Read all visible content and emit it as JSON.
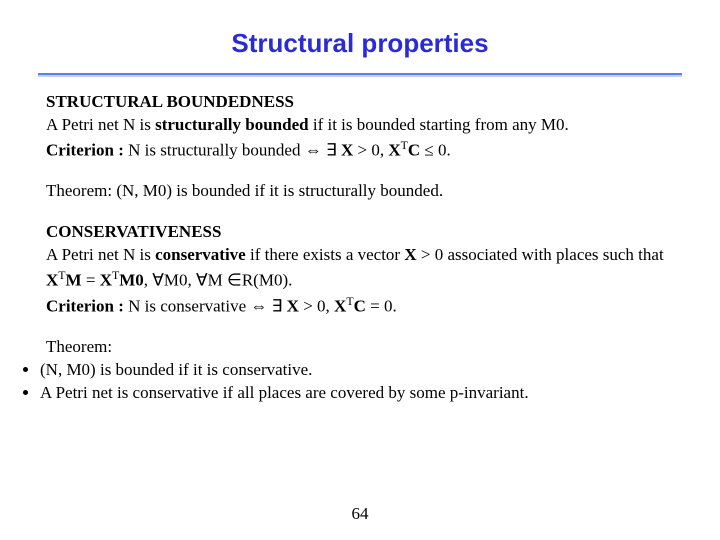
{
  "title": "Structural properties",
  "section1": {
    "heading": " STRUCTURAL BOUNDEDNESS",
    "def_pre": "A Petri net N is ",
    "def_term": "structurally bounded",
    "def_post": " if it is bounded starting from any M0.",
    "crit_label": "Criterion :",
    "crit_a": " N is structurally bounded ⇔ ∃ ",
    "crit_b": "X",
    "crit_c": " > 0, ",
    "crit_d": "X",
    "crit_e": "T",
    "crit_f": "C",
    "crit_g": " ≤ 0.",
    "theorem": "Theorem: (N, M0) is bounded if it is structurally bounded."
  },
  "section2": {
    "heading": "CONSERVATIVENESS",
    "def_pre": "A Petri net N is ",
    "def_term": "conservative",
    "def_post_a": " if there exists a vector ",
    "def_post_b": "X",
    "def_post_c": " > 0 associated with places such that ",
    "def_eq_a": "X",
    "def_eq_sup1": "T",
    "def_eq_b": "M",
    "def_eq_c": " = ",
    "def_eq_d": "X",
    "def_eq_sup2": "T",
    "def_eq_e": "M0",
    "def_eq_f": ", ∀M0, ∀M ∈R(M0).",
    "crit_label": "Criterion :",
    "crit_a": " N is conservative ⇔ ∃ ",
    "crit_b": "X",
    "crit_c": " > 0, ",
    "crit_d": "X",
    "crit_e": "T",
    "crit_f": "C",
    "crit_g": " = 0.",
    "theorem_lead": " Theorem:",
    "bullet1": "(N, M0) is bounded if it is conservative.",
    "bullet2": "A Petri net is conservative if all places are covered by some p-invariant."
  },
  "page_number": "64",
  "colors": {
    "title_color": "#2b2bd6",
    "rule_top": "#5a7fe6",
    "rule_bottom": "#c3d0f2",
    "text": "#000000",
    "background": "#ffffff"
  }
}
